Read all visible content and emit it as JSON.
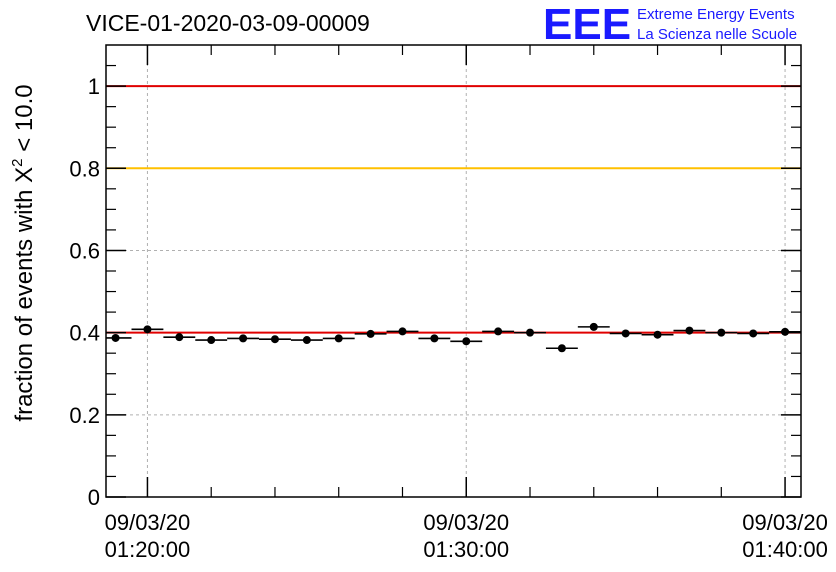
{
  "title": "VICE-01-2020-03-09-00009",
  "logo": {
    "mark": "EEE",
    "line1": "Extreme Energy Events",
    "line2": "La Scienza nelle Scuole",
    "color": "#1a1aff"
  },
  "colors": {
    "ref_line_1": "#e00000",
    "ref_line_08": "#ffc000",
    "mean_line": "#e00000",
    "markers": "#000000",
    "grid": "#b0b0b0"
  },
  "chart_data": {
    "type": "scatter",
    "title": "VICE-01-2020-03-09-00009",
    "ylabel_text": "fraction of events with X",
    "ylabel_sup": "2",
    "ylabel_tail": " < 10.0",
    "ylim": [
      0,
      1.1
    ],
    "y_ticks": [
      "0",
      "0.2",
      "0.4",
      "0.6",
      "0.8",
      "1"
    ],
    "y_tick_values": [
      0,
      0.2,
      0.4,
      0.6,
      0.8,
      1.0
    ],
    "xlim_minutes": [
      -1.3,
      20.5
    ],
    "x_ticks": [
      {
        "minute": 0,
        "date": "09/03/20",
        "time": "01:20:00"
      },
      {
        "minute": 10,
        "date": "09/03/20",
        "time": "01:30:00"
      },
      {
        "minute": 20,
        "date": "09/03/20",
        "time": "01:40:00"
      }
    ],
    "grid": true,
    "reference_lines": [
      {
        "y": 1.0,
        "color": "#e00000"
      },
      {
        "y": 0.8,
        "color": "#ffc000"
      },
      {
        "y": 0.4,
        "color": "#e00000"
      }
    ],
    "bin_width_minutes": 1.0,
    "points": [
      {
        "x": -1.0,
        "y": 0.387
      },
      {
        "x": 0.0,
        "y": 0.408
      },
      {
        "x": 1.0,
        "y": 0.389
      },
      {
        "x": 2.0,
        "y": 0.382
      },
      {
        "x": 3.0,
        "y": 0.386
      },
      {
        "x": 4.0,
        "y": 0.384
      },
      {
        "x": 5.0,
        "y": 0.382
      },
      {
        "x": 6.0,
        "y": 0.386
      },
      {
        "x": 7.0,
        "y": 0.397
      },
      {
        "x": 8.0,
        "y": 0.403
      },
      {
        "x": 9.0,
        "y": 0.386
      },
      {
        "x": 10.0,
        "y": 0.379
      },
      {
        "x": 11.0,
        "y": 0.403
      },
      {
        "x": 12.0,
        "y": 0.4
      },
      {
        "x": 13.0,
        "y": 0.362
      },
      {
        "x": 14.0,
        "y": 0.414
      },
      {
        "x": 15.0,
        "y": 0.398
      },
      {
        "x": 16.0,
        "y": 0.395
      },
      {
        "x": 17.0,
        "y": 0.405
      },
      {
        "x": 18.0,
        "y": 0.4
      },
      {
        "x": 19.0,
        "y": 0.398
      },
      {
        "x": 20.0,
        "y": 0.402
      }
    ]
  }
}
